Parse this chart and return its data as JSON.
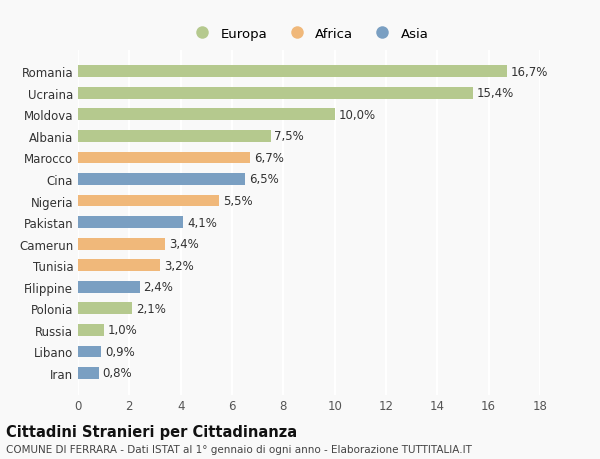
{
  "countries": [
    "Romania",
    "Ucraina",
    "Moldova",
    "Albania",
    "Marocco",
    "Cina",
    "Nigeria",
    "Pakistan",
    "Camerun",
    "Tunisia",
    "Filippine",
    "Polonia",
    "Russia",
    "Libano",
    "Iran"
  ],
  "values": [
    16.7,
    15.4,
    10.0,
    7.5,
    6.7,
    6.5,
    5.5,
    4.1,
    3.4,
    3.2,
    2.4,
    2.1,
    1.0,
    0.9,
    0.8
  ],
  "labels": [
    "16,7%",
    "15,4%",
    "10,0%",
    "7,5%",
    "6,7%",
    "6,5%",
    "5,5%",
    "4,1%",
    "3,4%",
    "3,2%",
    "2,4%",
    "2,1%",
    "1,0%",
    "0,9%",
    "0,8%"
  ],
  "continent": [
    "Europa",
    "Europa",
    "Europa",
    "Europa",
    "Africa",
    "Asia",
    "Africa",
    "Asia",
    "Africa",
    "Africa",
    "Asia",
    "Europa",
    "Europa",
    "Asia",
    "Asia"
  ],
  "colors": {
    "Europa": "#b5c98e",
    "Africa": "#f0b87a",
    "Asia": "#7a9fc2"
  },
  "xlim": [
    0,
    18
  ],
  "xticks": [
    0,
    2,
    4,
    6,
    8,
    10,
    12,
    14,
    16,
    18
  ],
  "title": "Cittadini Stranieri per Cittadinanza",
  "subtitle": "COMUNE DI FERRARA - Dati ISTAT al 1° gennaio di ogni anno - Elaborazione TUTTITALIA.IT",
  "background_color": "#f9f9f9",
  "grid_color": "#ffffff",
  "bar_height": 0.55,
  "label_fontsize": 8.5,
  "tick_fontsize": 8.5,
  "title_fontsize": 10.5,
  "subtitle_fontsize": 7.5
}
